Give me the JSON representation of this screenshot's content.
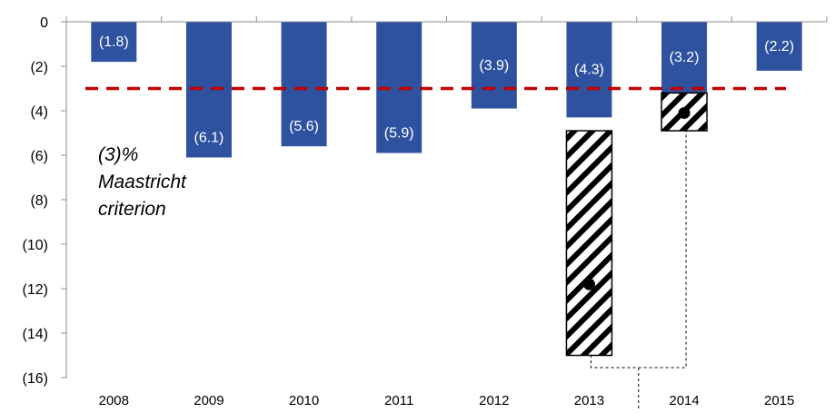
{
  "chart_data": {
    "type": "bar",
    "categories": [
      "2008",
      "2009",
      "2010",
      "2011",
      "2012",
      "2013",
      "2014",
      "2015"
    ],
    "values": [
      -1.8,
      -6.1,
      -5.6,
      -5.9,
      -3.9,
      -4.3,
      -3.2,
      -2.2
    ],
    "bar_labels": [
      "(1.8)",
      "(6.1)",
      "(5.6)",
      "(5.9)",
      "(3.9)",
      "(4.3)",
      "(3.2)",
      "(2.2)"
    ],
    "ylim": [
      -16,
      0
    ],
    "yticks": [
      0,
      -2,
      -4,
      -6,
      -8,
      -10,
      -12,
      -14,
      -16
    ],
    "ytick_labels": [
      "0",
      "(2)",
      "(4)",
      "(6)",
      "(8)",
      "(10)",
      "(12)",
      "(14)",
      "(16)"
    ],
    "grid": false,
    "reference_line": {
      "value": -3,
      "label_lines": [
        "(3)%",
        "Maastricht",
        "criterion"
      ],
      "style": "dashed",
      "color": "#c00000"
    },
    "extra_ranges": [
      {
        "category": "2013",
        "from": -4.9,
        "to": -15.0,
        "point": -11.8
      },
      {
        "category": "2014",
        "from": -3.2,
        "to": -4.9,
        "point": -4.1
      }
    ],
    "colors": {
      "bar": "#2f52a0",
      "bar_label": "#ffffff",
      "reference_line": "#c00000",
      "hatch": "#000000"
    }
  }
}
